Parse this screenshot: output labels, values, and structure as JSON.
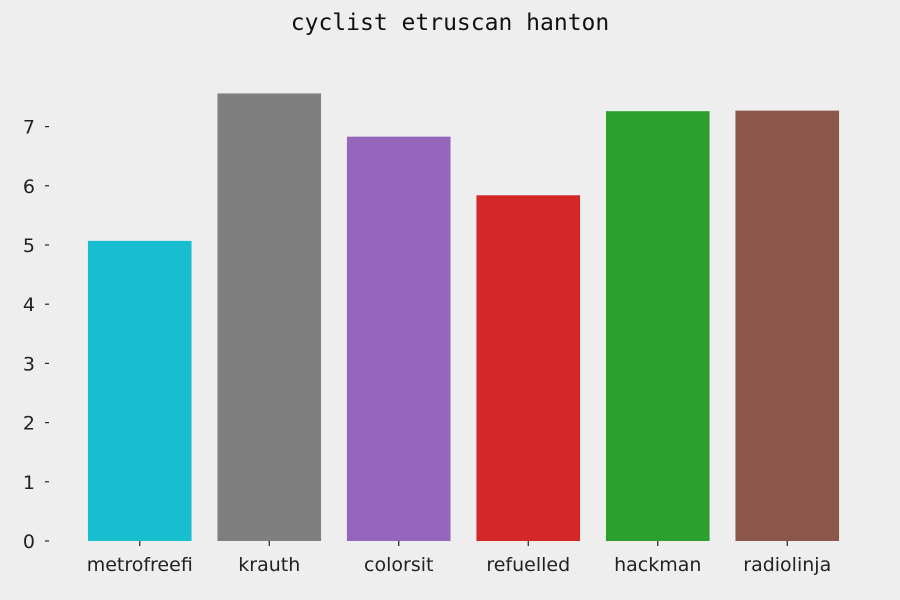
{
  "chart_data": {
    "type": "bar",
    "title": "cyclist etruscan hanton",
    "xlabel": "",
    "ylabel": "",
    "categories": [
      "metrofreefi",
      "krauth",
      "colorsit",
      "refuelled",
      "hackman",
      "radiolinja"
    ],
    "values": [
      5.07,
      7.56,
      6.83,
      5.84,
      7.26,
      7.27
    ],
    "colors": [
      "#17becf",
      "#7f7f7f",
      "#9467bd",
      "#d62728",
      "#2ca02c",
      "#8c564b"
    ],
    "ylim": [
      0,
      7.9
    ],
    "yticks": [
      "0",
      "1",
      "2",
      "3",
      "4",
      "5",
      "6",
      "7"
    ],
    "grid": false,
    "legend": "none"
  }
}
